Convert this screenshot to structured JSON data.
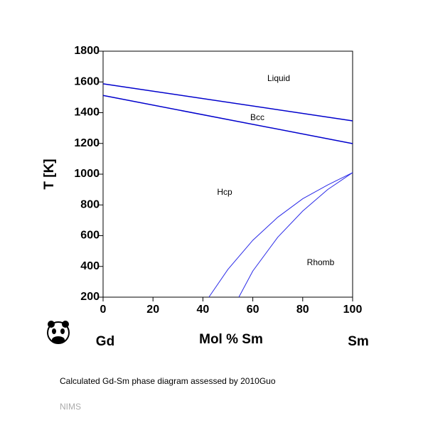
{
  "chart_data": {
    "type": "line",
    "xlabel": "Mol % Sm",
    "ylabel": "T [K]",
    "xlim": [
      0,
      100
    ],
    "xticks": [
      0,
      20,
      40,
      60,
      80,
      100
    ],
    "ylim": [
      200,
      1800
    ],
    "yticks": [
      200,
      400,
      600,
      800,
      1000,
      1200,
      1400,
      1600,
      1800
    ],
    "series": [
      {
        "color": "#0000cc",
        "width": 1.5,
        "x": [
          0,
          100
        ],
        "values": [
          1588,
          1347
        ]
      },
      {
        "color": "#0000cc",
        "width": 1.5,
        "x": [
          0,
          100
        ],
        "values": [
          1512,
          1199
        ]
      },
      {
        "color": "#2a2ae8",
        "width": 1,
        "x": [
          42.4,
          50,
          60,
          70,
          80,
          90,
          100
        ],
        "values": [
          200,
          380,
          570,
          720,
          840,
          930,
          1010
        ]
      },
      {
        "color": "#2a2ae8",
        "width": 1,
        "x": [
          54.4,
          60,
          70,
          80,
          90,
          100
        ],
        "values": [
          200,
          370,
          590,
          760,
          900,
          1010
        ]
      }
    ],
    "annotations": [
      "Liquid",
      "Bcc",
      "Hcp",
      "Rhomb"
    ],
    "left_element": "Gd",
    "right_element": "Sm",
    "caption": "Calculated Gd-Sm phase diagram assessed by 2010Guo",
    "source": "NIMS"
  }
}
